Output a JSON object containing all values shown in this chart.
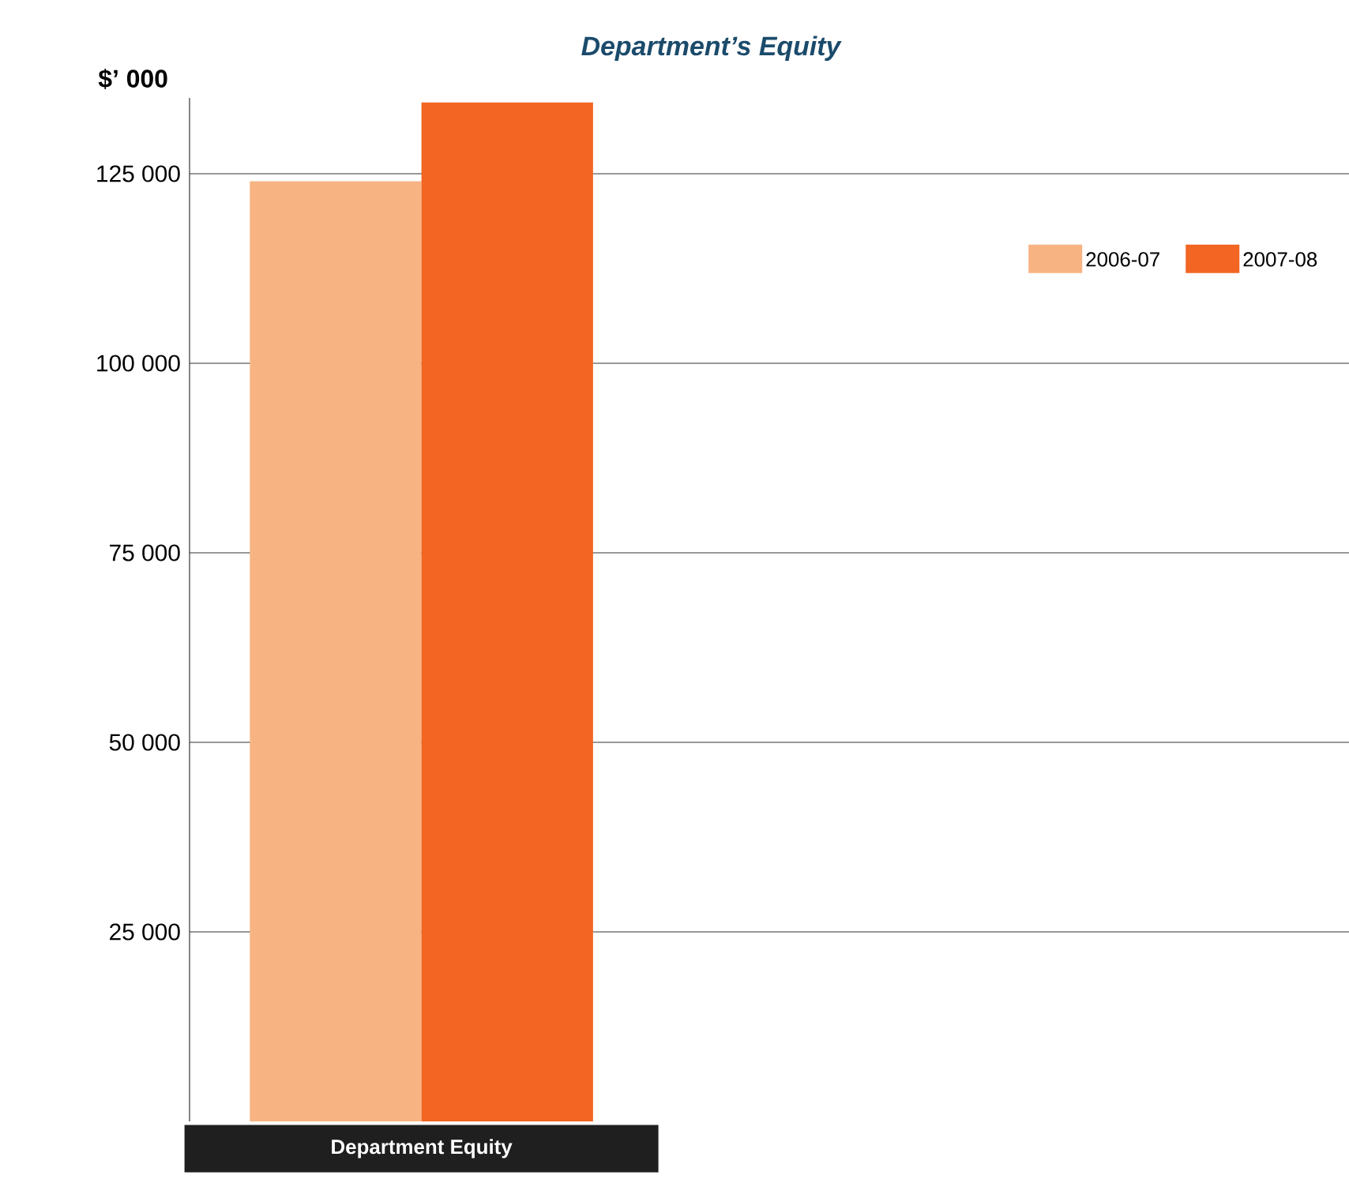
{
  "chart_data": {
    "type": "bar",
    "title": "Department’s Equity",
    "ylabel": "$’ 000",
    "categories": [
      "Department Equity"
    ],
    "series": [
      {
        "name": "2006-07",
        "color": "#f8b383",
        "values": [
          124000
        ]
      },
      {
        "name": "2007-08",
        "color": "#f26522",
        "values": [
          134400
        ]
      }
    ],
    "ylim": [
      0,
      135000
    ],
    "yticks": [
      {
        "value": 25000,
        "label": "25 000"
      },
      {
        "value": 50000,
        "label": "50 000"
      },
      {
        "value": 75000,
        "label": "75 000"
      },
      {
        "value": 100000,
        "label": "100 000"
      },
      {
        "value": 125000,
        "label": "125 000"
      }
    ],
    "grid": "y",
    "legend": "top right"
  }
}
